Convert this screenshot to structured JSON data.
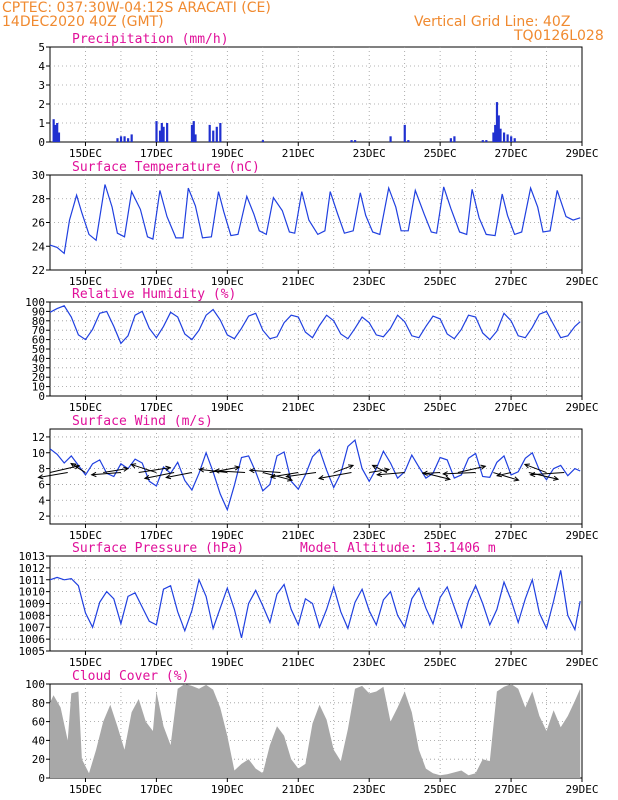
{
  "header": {
    "line1": "CPTEC:    037:30W-04:12S    ARACATI (CE)",
    "line2": "14DEC2020 40Z (GMT)",
    "right1": "Vertical Grid Line: 40Z",
    "right2": "TQ0126L028"
  },
  "colors": {
    "header": "#f08a30",
    "title": "#e0109a",
    "line": "#2040e0",
    "precip_bar": "#2030d0",
    "cloud_fill": "#a8a8a8",
    "wind_arrow": "#000000",
    "grid": "#9a9a9a"
  },
  "x_axis_dates": [
    "15DEC",
    "17DEC",
    "19DEC",
    "21DEC",
    "23DEC",
    "25DEC",
    "27DEC",
    "29DEC"
  ],
  "chart_data": [
    {
      "type": "bar",
      "title": "Precipitation (mm/h)",
      "ylim": [
        0,
        5
      ],
      "yticks": [
        "0",
        "1",
        "2",
        "3",
        "4",
        "5"
      ],
      "x_days": [
        14.1,
        14.15,
        14.2,
        14.25,
        15.9,
        16.0,
        16.1,
        16.2,
        16.3,
        17.0,
        17.1,
        17.15,
        17.2,
        17.3,
        18.0,
        18.05,
        18.1,
        18.5,
        18.6,
        18.7,
        18.8,
        20.0,
        22.5,
        22.6,
        23.6,
        24.0,
        24.1,
        25.3,
        25.4,
        26.2,
        26.3,
        26.5,
        26.55,
        26.6,
        26.65,
        26.7,
        26.8,
        26.9,
        27.0,
        27.1
      ],
      "values": [
        1.2,
        0.9,
        1.0,
        0.5,
        0.2,
        0.3,
        0.3,
        0.2,
        0.4,
        1.1,
        0.6,
        1.0,
        0.8,
        1.0,
        0.9,
        1.1,
        0.4,
        0.9,
        0.6,
        0.8,
        1.0,
        0.1,
        0.1,
        0.1,
        0.3,
        0.9,
        0.1,
        0.2,
        0.3,
        0.1,
        0.1,
        0.5,
        0.9,
        2.1,
        1.4,
        0.7,
        0.5,
        0.4,
        0.3,
        0.2
      ]
    },
    {
      "type": "line",
      "title": "Surface Temperature (nC)",
      "ylim": [
        22,
        30
      ],
      "yticks": [
        "22",
        "24",
        "26",
        "28",
        "30"
      ],
      "x_days": [
        14.0,
        14.2,
        14.4,
        14.55,
        14.75,
        14.9,
        15.1,
        15.3,
        15.55,
        15.75,
        15.9,
        16.1,
        16.3,
        16.55,
        16.75,
        16.9,
        17.1,
        17.3,
        17.55,
        17.75,
        17.9,
        18.1,
        18.3,
        18.55,
        18.75,
        18.9,
        19.1,
        19.3,
        19.55,
        19.75,
        19.9,
        20.1,
        20.3,
        20.55,
        20.75,
        20.9,
        21.1,
        21.3,
        21.55,
        21.75,
        21.9,
        22.1,
        22.3,
        22.55,
        22.75,
        22.9,
        23.1,
        23.3,
        23.55,
        23.75,
        23.9,
        24.1,
        24.3,
        24.55,
        24.75,
        24.9,
        25.1,
        25.3,
        25.55,
        25.75,
        25.9,
        26.1,
        26.3,
        26.55,
        26.75,
        26.9,
        27.1,
        27.3,
        27.55,
        27.75,
        27.9,
        28.1,
        28.3,
        28.55,
        28.75,
        28.95
      ],
      "values": [
        24.1,
        23.9,
        23.4,
        26.2,
        28.3,
        26.8,
        25.0,
        24.5,
        29.2,
        27.3,
        25.1,
        24.8,
        28.6,
        27.1,
        24.8,
        24.6,
        28.7,
        26.5,
        24.7,
        24.7,
        28.9,
        27.4,
        24.7,
        24.8,
        28.6,
        26.9,
        24.9,
        25.0,
        28.2,
        26.7,
        25.3,
        25.0,
        28.1,
        27.0,
        25.2,
        25.1,
        28.6,
        26.2,
        25.0,
        25.3,
        28.6,
        26.8,
        25.1,
        25.3,
        28.5,
        26.6,
        25.2,
        25.0,
        28.9,
        27.3,
        25.3,
        25.3,
        28.7,
        26.7,
        25.2,
        25.1,
        29.0,
        27.2,
        25.2,
        25.0,
        28.8,
        26.4,
        25.0,
        24.9,
        28.4,
        26.6,
        25.0,
        25.2,
        28.9,
        27.3,
        25.2,
        25.3,
        28.7,
        26.5,
        26.2,
        26.4
      ]
    },
    {
      "type": "line",
      "title": "Relative Humidity (%)",
      "ylim": [
        0,
        100
      ],
      "yticks": [
        "0",
        "10",
        "20",
        "30",
        "40",
        "50",
        "60",
        "70",
        "80",
        "90",
        "100"
      ],
      "x_days": [
        14.0,
        14.2,
        14.4,
        14.6,
        14.8,
        15.0,
        15.2,
        15.4,
        15.6,
        15.8,
        16.0,
        16.2,
        16.4,
        16.6,
        16.8,
        17.0,
        17.2,
        17.4,
        17.6,
        17.8,
        18.0,
        18.2,
        18.4,
        18.6,
        18.8,
        19.0,
        19.2,
        19.4,
        19.6,
        19.8,
        20.0,
        20.2,
        20.4,
        20.6,
        20.8,
        21.0,
        21.2,
        21.4,
        21.6,
        21.8,
        22.0,
        22.2,
        22.4,
        22.6,
        22.8,
        23.0,
        23.2,
        23.4,
        23.6,
        23.8,
        24.0,
        24.2,
        24.4,
        24.6,
        24.8,
        25.0,
        25.2,
        25.4,
        25.6,
        25.8,
        26.0,
        26.2,
        26.4,
        26.6,
        26.8,
        27.0,
        27.2,
        27.4,
        27.6,
        27.8,
        28.0,
        28.2,
        28.4,
        28.6,
        28.8,
        28.95
      ],
      "values": [
        89,
        93,
        96,
        84,
        65,
        60,
        71,
        88,
        90,
        74,
        56,
        64,
        86,
        90,
        72,
        62,
        74,
        89,
        84,
        66,
        60,
        70,
        86,
        92,
        81,
        65,
        61,
        72,
        85,
        88,
        70,
        61,
        63,
        78,
        86,
        84,
        68,
        62,
        75,
        86,
        80,
        66,
        61,
        72,
        84,
        78,
        65,
        63,
        72,
        86,
        79,
        64,
        62,
        74,
        85,
        82,
        66,
        61,
        71,
        86,
        84,
        67,
        60,
        69,
        88,
        80,
        64,
        62,
        73,
        87,
        90,
        76,
        62,
        64,
        74,
        79
      ]
    },
    {
      "type": "line",
      "title": "Surface Wind (m/s)",
      "ylim": [
        1,
        13
      ],
      "yticks": [
        "2",
        "4",
        "6",
        "8",
        "10",
        "12"
      ],
      "x_days": [
        14.0,
        14.2,
        14.4,
        14.6,
        14.8,
        15.0,
        15.2,
        15.4,
        15.6,
        15.8,
        16.0,
        16.2,
        16.4,
        16.6,
        16.8,
        17.0,
        17.2,
        17.4,
        17.6,
        17.8,
        18.0,
        18.2,
        18.4,
        18.6,
        18.8,
        19.0,
        19.2,
        19.4,
        19.6,
        19.8,
        20.0,
        20.2,
        20.4,
        20.6,
        20.8,
        21.0,
        21.2,
        21.4,
        21.6,
        21.8,
        22.0,
        22.2,
        22.4,
        22.6,
        22.8,
        23.0,
        23.2,
        23.4,
        23.6,
        23.8,
        24.0,
        24.2,
        24.4,
        24.6,
        24.8,
        25.0,
        25.2,
        25.4,
        25.6,
        25.8,
        26.0,
        26.2,
        26.4,
        26.6,
        26.8,
        27.0,
        27.2,
        27.4,
        27.6,
        27.8,
        28.0,
        28.2,
        28.4,
        28.6,
        28.8,
        28.95
      ],
      "values": [
        10.5,
        9.8,
        8.7,
        9.6,
        8.4,
        7.2,
        8.6,
        9.1,
        7.4,
        7.0,
        8.6,
        8.0,
        9.2,
        8.7,
        6.4,
        5.8,
        8.2,
        7.4,
        8.8,
        6.5,
        5.3,
        7.4,
        10.0,
        7.6,
        4.8,
        2.8,
        5.9,
        9.4,
        9.6,
        7.6,
        5.2,
        6.0,
        9.6,
        10.1,
        6.4,
        5.4,
        7.2,
        9.5,
        10.4,
        7.8,
        5.6,
        7.4,
        10.8,
        11.6,
        8.0,
        6.4,
        8.0,
        10.2,
        8.7,
        6.8,
        7.6,
        9.7,
        8.2,
        6.8,
        7.4,
        9.4,
        9.1,
        6.8,
        7.2,
        9.3,
        9.9,
        7.0,
        6.9,
        8.8,
        9.6,
        7.2,
        7.6,
        9.3,
        10.0,
        7.8,
        6.6,
        8.0,
        8.4,
        7.1,
        8.0,
        7.7
      ],
      "arrows": {
        "x_days": [
          14.0,
          14.5,
          15.0,
          15.5,
          16.0,
          16.5,
          17.0,
          17.5,
          18.0,
          18.5,
          19.0,
          19.5,
          20.0,
          20.5,
          21.0,
          21.5,
          22.0,
          22.5,
          23.0,
          23.5,
          24.0,
          24.5,
          25.0,
          25.5,
          26.0,
          26.5,
          27.0,
          27.5,
          28.0,
          28.5
        ],
        "u": [
          6.5,
          -6.5,
          -3.2,
          5.5,
          -6.5,
          7.0,
          -5.6,
          -6.5,
          -5.7,
          6.6,
          -6.2,
          -6.7,
          6.5,
          -6.8,
          -6.1,
          -6.6,
          4.3,
          -7.2,
          4.4,
          -3.2,
          -6.1,
          6.1,
          -3.8,
          6.1,
          -7.2,
          5.6,
          -3.1,
          6.5,
          -4.8,
          -7.5
        ],
        "v": [
          1.5,
          -1.1,
          2.0,
          0.9,
          -0.5,
          1.1,
          1.8,
          -1.3,
          -1.1,
          1.2,
          0.7,
          0.4,
          -1.7,
          0.5,
          -1.0,
          -0.9,
          1.6,
          -1.3,
          0.7,
          1.6,
          -0.5,
          -1.5,
          -0.2,
          1.4,
          -0.3,
          -1.7,
          -0.7,
          -1.5,
          1.8,
          -0.5
        ]
      }
    },
    {
      "type": "line",
      "title": "Surface Pressure (hPa)",
      "annotation": "Model Altitude: 13.1406 m",
      "ylim": [
        1005,
        1013
      ],
      "yticks": [
        "1005",
        "1006",
        "1007",
        "1008",
        "1009",
        "1010",
        "1011",
        "1012",
        "1013"
      ],
      "x_days": [
        14.0,
        14.2,
        14.4,
        14.6,
        14.8,
        15.0,
        15.2,
        15.4,
        15.6,
        15.8,
        16.0,
        16.2,
        16.4,
        16.6,
        16.8,
        17.0,
        17.2,
        17.4,
        17.6,
        17.8,
        18.0,
        18.2,
        18.4,
        18.6,
        18.8,
        19.0,
        19.2,
        19.4,
        19.6,
        19.8,
        20.0,
        20.2,
        20.4,
        20.6,
        20.8,
        21.0,
        21.2,
        21.4,
        21.6,
        21.8,
        22.0,
        22.2,
        22.4,
        22.6,
        22.8,
        23.0,
        23.2,
        23.4,
        23.6,
        23.8,
        24.0,
        24.2,
        24.4,
        24.6,
        24.8,
        25.0,
        25.2,
        25.4,
        25.6,
        25.8,
        26.0,
        26.2,
        26.4,
        26.6,
        26.8,
        27.0,
        27.2,
        27.4,
        27.6,
        27.8,
        28.0,
        28.2,
        28.4,
        28.6,
        28.8,
        28.95
      ],
      "values": [
        1011.0,
        1011.2,
        1011.0,
        1011.1,
        1010.5,
        1008.2,
        1007.0,
        1009.1,
        1010.0,
        1009.4,
        1007.3,
        1009.6,
        1009.9,
        1008.7,
        1007.5,
        1007.2,
        1010.2,
        1010.5,
        1008.3,
        1006.7,
        1008.4,
        1011.0,
        1009.6,
        1006.9,
        1008.6,
        1010.3,
        1008.5,
        1006.1,
        1009.0,
        1010.1,
        1008.8,
        1007.4,
        1009.8,
        1010.6,
        1008.5,
        1007.2,
        1009.4,
        1009.0,
        1007.0,
        1008.5,
        1010.4,
        1008.3,
        1006.9,
        1009.1,
        1010.2,
        1008.4,
        1007.2,
        1009.3,
        1010.0,
        1008.0,
        1007.0,
        1009.4,
        1010.3,
        1008.6,
        1007.3,
        1009.5,
        1010.4,
        1008.7,
        1007.0,
        1009.2,
        1010.5,
        1009.0,
        1007.2,
        1008.5,
        1010.8,
        1009.3,
        1007.4,
        1009.4,
        1011.0,
        1008.2,
        1006.9,
        1009.2,
        1011.8,
        1008.0,
        1006.8,
        1009.2
      ]
    },
    {
      "type": "area",
      "title": "Cloud Cover (%)",
      "ylim": [
        0,
        100
      ],
      "yticks": [
        "0",
        "20",
        "40",
        "60",
        "80",
        "100"
      ],
      "x_days": [
        14.0,
        14.1,
        14.3,
        14.5,
        14.6,
        14.8,
        14.9,
        15.1,
        15.3,
        15.5,
        15.7,
        15.9,
        16.1,
        16.3,
        16.5,
        16.7,
        16.9,
        17.0,
        17.2,
        17.4,
        17.6,
        17.8,
        18.0,
        18.2,
        18.4,
        18.6,
        18.8,
        19.0,
        19.2,
        19.4,
        19.6,
        19.8,
        20.0,
        20.2,
        20.4,
        20.6,
        20.8,
        21.0,
        21.2,
        21.4,
        21.6,
        21.8,
        22.0,
        22.2,
        22.4,
        22.6,
        22.8,
        23.0,
        23.2,
        23.4,
        23.6,
        23.8,
        24.0,
        24.2,
        24.4,
        24.6,
        24.8,
        25.0,
        25.2,
        25.4,
        25.6,
        25.8,
        26.0,
        26.2,
        26.4,
        26.6,
        26.8,
        27.0,
        27.2,
        27.4,
        27.6,
        27.8,
        28.0,
        28.2,
        28.4,
        28.6,
        28.8,
        28.95
      ],
      "values": [
        80,
        88,
        75,
        40,
        90,
        92,
        20,
        5,
        30,
        60,
        78,
        55,
        30,
        70,
        84,
        60,
        50,
        92,
        55,
        35,
        95,
        100,
        98,
        95,
        99,
        94,
        75,
        45,
        8,
        15,
        20,
        10,
        5,
        35,
        55,
        45,
        20,
        10,
        15,
        58,
        78,
        62,
        30,
        18,
        52,
        95,
        98,
        90,
        92,
        97,
        60,
        75,
        92,
        70,
        30,
        10,
        5,
        3,
        4,
        6,
        8,
        3,
        5,
        20,
        18,
        92,
        97,
        100,
        95,
        75,
        92,
        66,
        50,
        72,
        54,
        66,
        82,
        95
      ]
    }
  ]
}
